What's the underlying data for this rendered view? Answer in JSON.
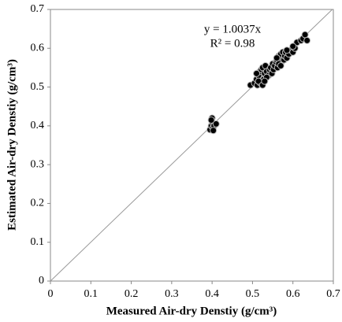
{
  "chart_data": {
    "type": "scatter",
    "x_label": "Measured Air-dry Denstiy (g/cm³)",
    "y_label": "Estimated Air-dry Denstiy (g/cm³)",
    "annotations": [
      "y = 1.0037x",
      "R² = 0.98"
    ],
    "trendline": {
      "label": "y = 1.0037x",
      "slope": 1.0037
    },
    "xlim": [
      0,
      0.7
    ],
    "ylim": [
      0,
      0.7
    ],
    "xticks": [
      0,
      0.1,
      0.2,
      0.3,
      0.4,
      0.5,
      0.6,
      0.7
    ],
    "yticks": [
      0,
      0.1,
      0.2,
      0.3,
      0.4,
      0.5,
      0.6,
      0.7
    ],
    "grid": false,
    "color": "#000000",
    "x": [
      0.395,
      0.398,
      0.4,
      0.4,
      0.402,
      0.405,
      0.41,
      0.403,
      0.398,
      0.495,
      0.505,
      0.51,
      0.512,
      0.515,
      0.518,
      0.52,
      0.522,
      0.525,
      0.528,
      0.53,
      0.532,
      0.535,
      0.54,
      0.542,
      0.545,
      0.548,
      0.55,
      0.552,
      0.555,
      0.558,
      0.56,
      0.562,
      0.565,
      0.568,
      0.57,
      0.572,
      0.575,
      0.578,
      0.58,
      0.582,
      0.585,
      0.59,
      0.595,
      0.6,
      0.605,
      0.61,
      0.62,
      0.625,
      0.63,
      0.635,
      0.515,
      0.525,
      0.535,
      0.565,
      0.57,
      0.585,
      0.6,
      0.51,
      0.53,
      0.56
    ],
    "values": [
      0.39,
      0.4,
      0.41,
      0.42,
      0.395,
      0.4,
      0.405,
      0.388,
      0.415,
      0.505,
      0.51,
      0.52,
      0.505,
      0.53,
      0.54,
      0.51,
      0.545,
      0.55,
      0.52,
      0.535,
      0.555,
      0.54,
      0.53,
      0.545,
      0.55,
      0.535,
      0.56,
      0.545,
      0.555,
      0.565,
      0.57,
      0.55,
      0.58,
      0.575,
      0.585,
      0.565,
      0.59,
      0.57,
      0.58,
      0.59,
      0.575,
      0.585,
      0.595,
      0.59,
      0.6,
      0.615,
      0.62,
      0.625,
      0.635,
      0.62,
      0.515,
      0.505,
      0.525,
      0.56,
      0.555,
      0.595,
      0.605,
      0.535,
      0.515,
      0.575
    ]
  }
}
